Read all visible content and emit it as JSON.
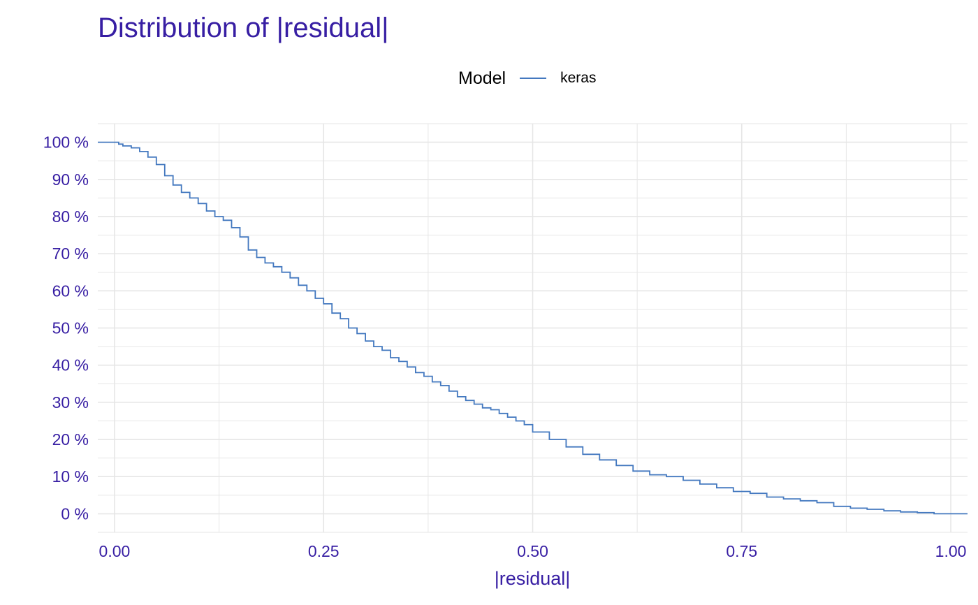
{
  "chart_data": {
    "type": "line",
    "title": "Distribution of |residual|",
    "xlabel": "|residual|",
    "ylabel": "",
    "legend": {
      "title": "Model",
      "placement": "top",
      "entries": [
        "keras"
      ]
    },
    "xlim": [
      -0.02,
      1.02
    ],
    "ylim": [
      -0.05,
      1.05
    ],
    "x_ticks": [
      0.0,
      0.25,
      0.5,
      0.75,
      1.0
    ],
    "x_tick_labels": [
      "0.00",
      "0.25",
      "0.50",
      "0.75",
      "1.00"
    ],
    "y_ticks": [
      0.0,
      0.1,
      0.2,
      0.3,
      0.4,
      0.5,
      0.6,
      0.7,
      0.8,
      0.9,
      1.0
    ],
    "y_tick_labels": [
      "0 %",
      "10 %",
      "20 %",
      "30 %",
      "40 %",
      "50 %",
      "60 %",
      "70 %",
      "80 %",
      "90 %",
      "100 %"
    ],
    "grid": true,
    "colors": {
      "text": "#371ea3",
      "line": "#4378bf",
      "grid": "#e6e6e6"
    },
    "series": [
      {
        "name": "keras",
        "step": true,
        "x": [
          -0.1,
          0.0,
          0.005,
          0.01,
          0.02,
          0.03,
          0.04,
          0.05,
          0.06,
          0.07,
          0.08,
          0.09,
          0.1,
          0.11,
          0.12,
          0.13,
          0.14,
          0.15,
          0.16,
          0.17,
          0.18,
          0.19,
          0.2,
          0.21,
          0.22,
          0.23,
          0.24,
          0.25,
          0.26,
          0.27,
          0.28,
          0.29,
          0.3,
          0.31,
          0.32,
          0.33,
          0.34,
          0.35,
          0.36,
          0.37,
          0.38,
          0.39,
          0.4,
          0.41,
          0.42,
          0.43,
          0.44,
          0.45,
          0.46,
          0.47,
          0.48,
          0.49,
          0.5,
          0.52,
          0.54,
          0.56,
          0.58,
          0.6,
          0.62,
          0.64,
          0.66,
          0.68,
          0.7,
          0.72,
          0.74,
          0.76,
          0.78,
          0.8,
          0.82,
          0.84,
          0.86,
          0.88,
          0.9,
          0.92,
          0.94,
          0.96,
          0.98,
          1.0,
          1.1
        ],
        "values": [
          1.0,
          1.0,
          0.995,
          0.99,
          0.985,
          0.975,
          0.96,
          0.94,
          0.91,
          0.885,
          0.865,
          0.85,
          0.835,
          0.815,
          0.8,
          0.79,
          0.77,
          0.745,
          0.71,
          0.69,
          0.675,
          0.665,
          0.65,
          0.635,
          0.615,
          0.6,
          0.58,
          0.565,
          0.54,
          0.525,
          0.5,
          0.485,
          0.465,
          0.45,
          0.44,
          0.42,
          0.41,
          0.395,
          0.38,
          0.37,
          0.355,
          0.345,
          0.33,
          0.315,
          0.305,
          0.295,
          0.285,
          0.28,
          0.27,
          0.26,
          0.25,
          0.24,
          0.22,
          0.2,
          0.18,
          0.16,
          0.145,
          0.13,
          0.115,
          0.105,
          0.1,
          0.09,
          0.08,
          0.07,
          0.06,
          0.055,
          0.045,
          0.04,
          0.035,
          0.03,
          0.02,
          0.015,
          0.012,
          0.008,
          0.005,
          0.003,
          0.0,
          0.0,
          0.0
        ]
      }
    ]
  }
}
